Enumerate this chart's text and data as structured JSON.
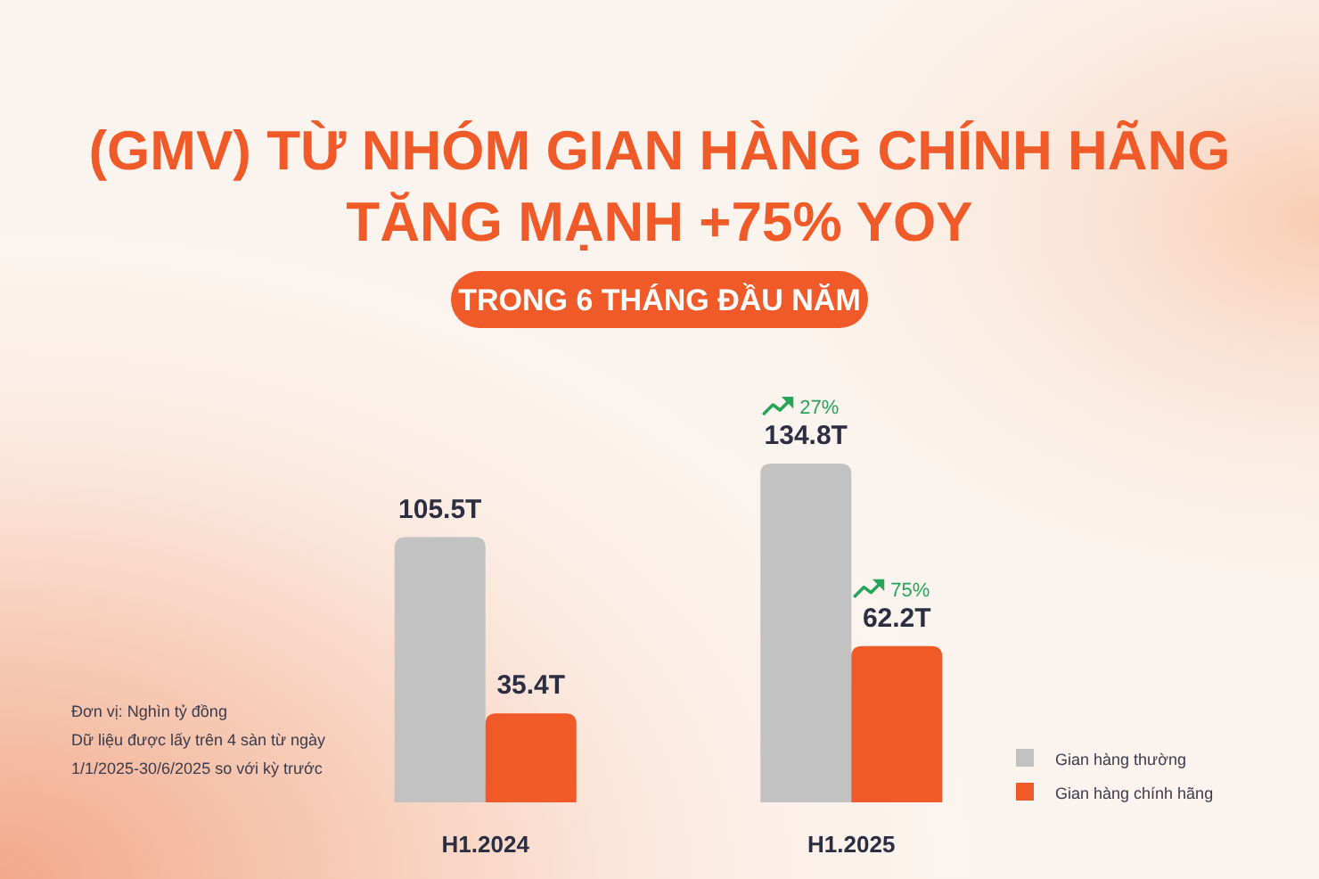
{
  "chart_data": {
    "type": "bar",
    "title": "(GMV) TỪ NHÓM GIAN HÀNG CHÍNH HÃNG TĂNG MẠNH +75% YOY",
    "subtitle": "TRONG 6 THÁNG ĐẦU NĂM",
    "categories": [
      "H1.2024",
      "H1.2025"
    ],
    "series": [
      {
        "name": "Gian hàng thường",
        "color": "#c2c2c2",
        "values": [
          105.5,
          134.8
        ],
        "value_labels": [
          "105.5T",
          "134.8T"
        ]
      },
      {
        "name": "Gian hàng chính hãng",
        "color": "#ef5a28",
        "values": [
          35.4,
          62.2
        ],
        "value_labels": [
          "35.4T",
          "62.2T"
        ]
      }
    ],
    "annotations": [
      "27%",
      "75%",
      "Đơn vị: Nghìn tỷ đồng",
      "Dữ liệu được lấy trên 4 sàn từ ngày 1/1/2025-30/6/2025 so với kỳ trước"
    ],
    "legend": "bottom right"
  }
}
